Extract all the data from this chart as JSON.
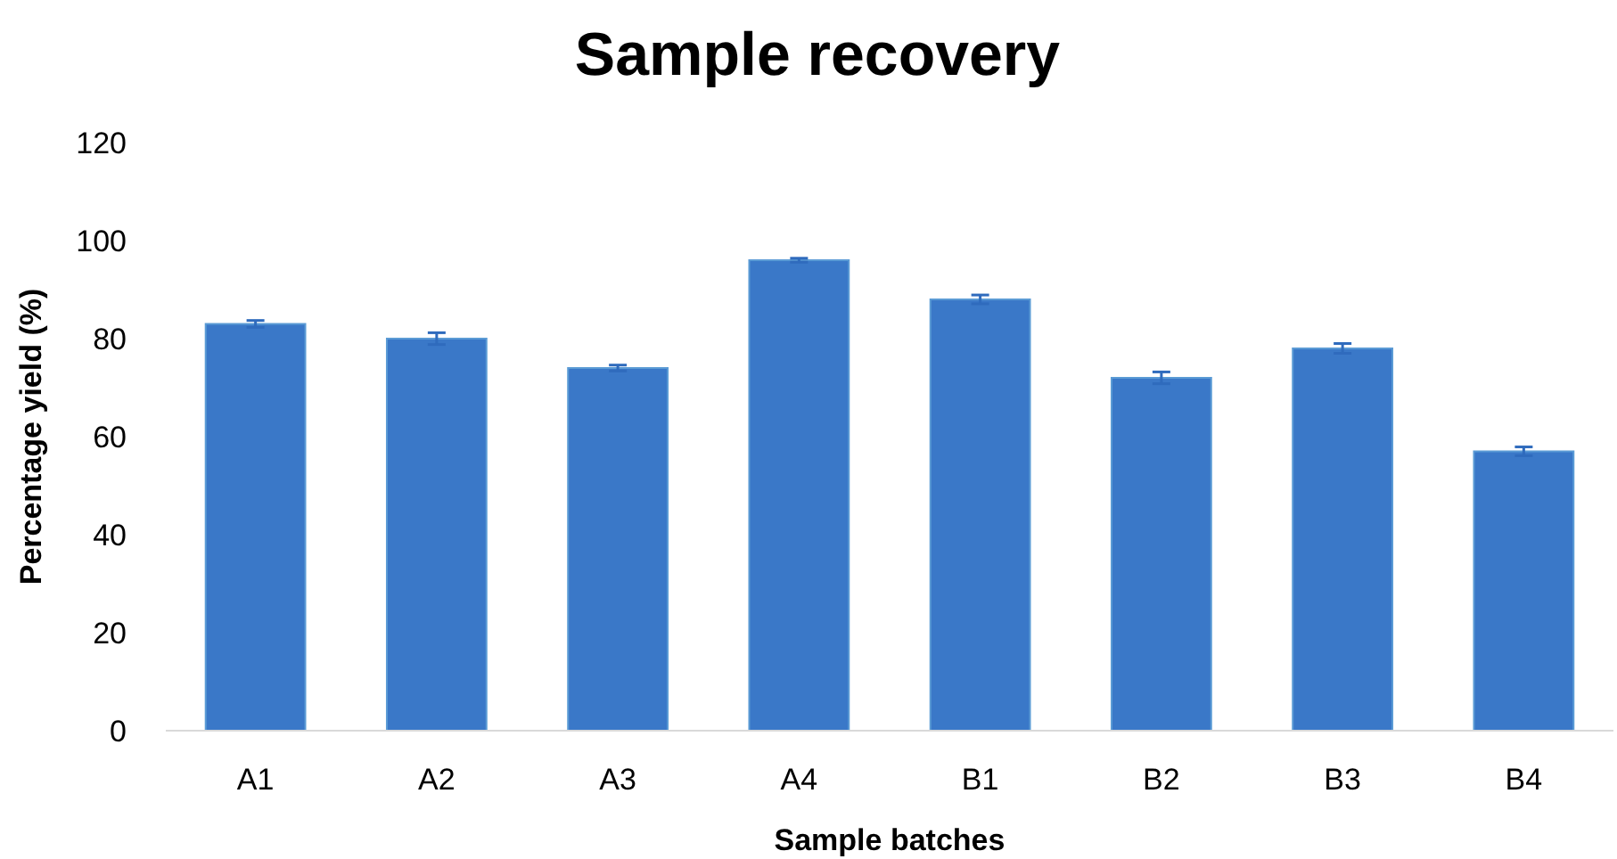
{
  "chart_data": {
    "type": "bar",
    "title": "Sample recovery",
    "xlabel": "Sample batches",
    "ylabel": "Percentage yield (%)",
    "categories": [
      "A1",
      "A2",
      "A3",
      "A4",
      "B1",
      "B2",
      "B3",
      "B4"
    ],
    "values": [
      83,
      80,
      74,
      96,
      88,
      72,
      78,
      57
    ],
    "errors": [
      0.7,
      1.2,
      0.6,
      0.4,
      0.9,
      1.2,
      1.0,
      0.9
    ],
    "color": "#3a78c8",
    "ylim": [
      0,
      120
    ],
    "yticks": [
      0,
      20,
      40,
      60,
      80,
      100,
      120
    ],
    "grid": false
  }
}
